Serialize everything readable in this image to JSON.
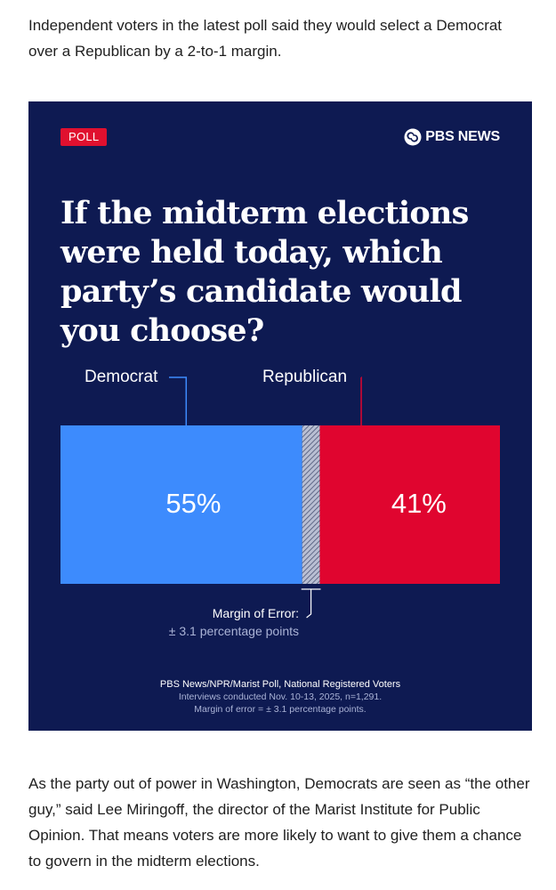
{
  "article": {
    "intro": "Independent voters in the latest poll said they would select a Democrat over a Republican by a 2-to-1 margin.",
    "followup": "As the party out of power in Washington, Democrats are seen as “the other guy,” said Lee Miringoff, the director of the Marist Institute for Public Opinion. That means voters are more likely to want to give them a chance to govern in the midterm elections."
  },
  "card": {
    "badge": "POLL",
    "brand": "PBS NEWS",
    "background": "#0e1a52"
  },
  "chart_data": {
    "type": "bar",
    "title": "If the midterm elections were held today, which party’s candidate would you choose?",
    "orientation": "stacked-horizontal",
    "series": [
      {
        "name": "Democrat",
        "value": 55,
        "label": "55%",
        "color": "#3d8bfd"
      },
      {
        "name": "Republican",
        "value": 41,
        "label": "41%",
        "color": "#e0052f"
      }
    ],
    "margin_of_error": {
      "value": 3.1,
      "title": "Margin of Error:",
      "text": "± 3.1 percentage points"
    },
    "legend_placement": "top",
    "grid": false,
    "source": [
      "PBS News/NPR/Marist Poll, National Registered Voters",
      "Interviews conducted Nov. 10-13, 2025, n=1,291.",
      "Margin of error = ± 3.1 percentage points."
    ]
  }
}
